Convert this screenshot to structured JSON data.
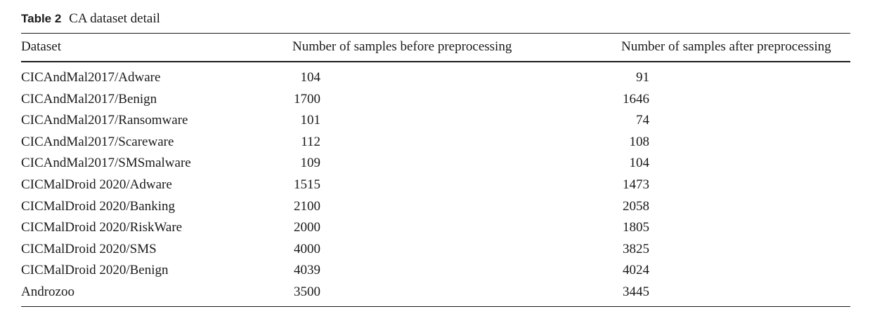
{
  "table": {
    "label": "Table 2",
    "title": "CA dataset detail",
    "headers": [
      "Dataset",
      "Number of samples before preprocessing",
      "Number of samples after preprocessing"
    ],
    "rows": [
      [
        "CICAndMal2017/Adware",
        "104",
        "91"
      ],
      [
        "CICAndMal2017/Benign",
        "1700",
        "1646"
      ],
      [
        "CICAndMal2017/Ransomware",
        "101",
        "74"
      ],
      [
        "CICAndMal2017/Scareware",
        "112",
        "108"
      ],
      [
        "CICAndMal2017/SMSmalware",
        "109",
        "104"
      ],
      [
        "CICMalDroid 2020/Adware",
        "1515",
        "1473"
      ],
      [
        "CICMalDroid 2020/Banking",
        "2100",
        "2058"
      ],
      [
        "CICMalDroid 2020/RiskWare",
        "2000",
        "1805"
      ],
      [
        "CICMalDroid 2020/SMS",
        "4000",
        "3825"
      ],
      [
        "CICMalDroid 2020/Benign",
        "4039",
        "4024"
      ],
      [
        "Androzoo",
        "3500",
        "3445"
      ]
    ]
  }
}
